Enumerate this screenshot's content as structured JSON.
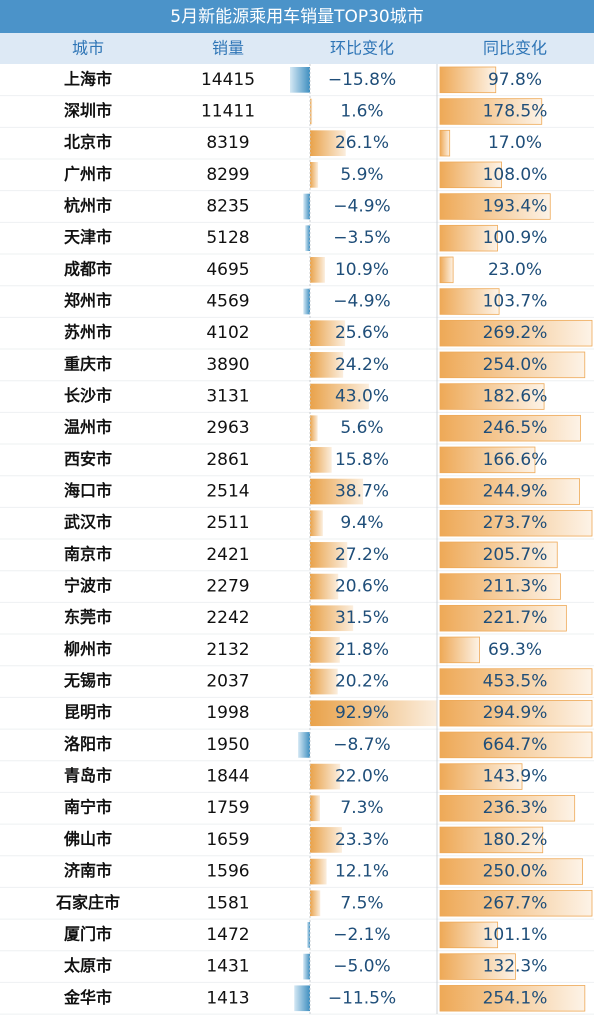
{
  "title": "5月新能源乘用车销量TOP30城市",
  "table": {
    "header": [
      "城市",
      "销量",
      "环比变化",
      "同比变化"
    ],
    "rows": [
      [
        "上海市",
        "14415",
        "−15.8%",
        "97.8%"
      ],
      [
        "深圳市",
        "11411",
        "1.6%",
        "178.5%"
      ],
      [
        "北京市",
        "8319",
        "26.1%",
        "17.0%"
      ],
      [
        "广州市",
        "8299",
        "5.9%",
        "108.0%"
      ],
      [
        "杭州市",
        "8235",
        "−4.9%",
        "193.4%"
      ],
      [
        "天津市",
        "5128",
        "−3.5%",
        "100.9%"
      ],
      [
        "成都市",
        "4695",
        "10.9%",
        "23.0%"
      ],
      [
        "郑州市",
        "4569",
        "−4.9%",
        "103.7%"
      ],
      [
        "苏州市",
        "4102",
        "25.6%",
        "269.2%"
      ],
      [
        "重庆市",
        "3890",
        "24.2%",
        "254.0%"
      ],
      [
        "长沙市",
        "3131",
        "43.0%",
        "182.6%"
      ],
      [
        "温州市",
        "2963",
        "5.6%",
        "246.5%"
      ],
      [
        "西安市",
        "2861",
        "15.8%",
        "166.6%"
      ],
      [
        "海口市",
        "2514",
        "38.7%",
        "244.9%"
      ],
      [
        "武汉市",
        "2511",
        "9.4%",
        "273.7%"
      ],
      [
        "南京市",
        "2421",
        "27.2%",
        "205.7%"
      ],
      [
        "宁波市",
        "2279",
        "20.6%",
        "211.3%"
      ],
      [
        "东莞市",
        "2242",
        "31.5%",
        "221.7%"
      ],
      [
        "柳州市",
        "2132",
        "21.8%",
        "69.3%"
      ],
      [
        "无锡市",
        "2037",
        "20.2%",
        "453.5%"
      ],
      [
        "昆明市",
        "1998",
        "92.9%",
        "294.9%"
      ],
      [
        "洛阳市",
        "1950",
        "−8.7%",
        "664.7%"
      ],
      [
        "青岛市",
        "1844",
        "22.0%",
        "143.9%"
      ],
      [
        "南宁市",
        "1759",
        "7.3%",
        "236.3%"
      ],
      [
        "佛山市",
        "1659",
        "23.3%",
        "180.2%"
      ],
      [
        "济南市",
        "1596",
        "12.1%",
        "250.0%"
      ],
      [
        "石家庄市",
        "1581",
        "7.5%",
        "267.7%"
      ],
      [
        "厦门市",
        "1472",
        "−2.1%",
        "101.1%"
      ],
      [
        "太原市",
        "1431",
        "−5.0%",
        "132.3%"
      ],
      [
        "金华市",
        "1413",
        "−11.5%",
        "254.1%"
      ]
    ]
  }
}
